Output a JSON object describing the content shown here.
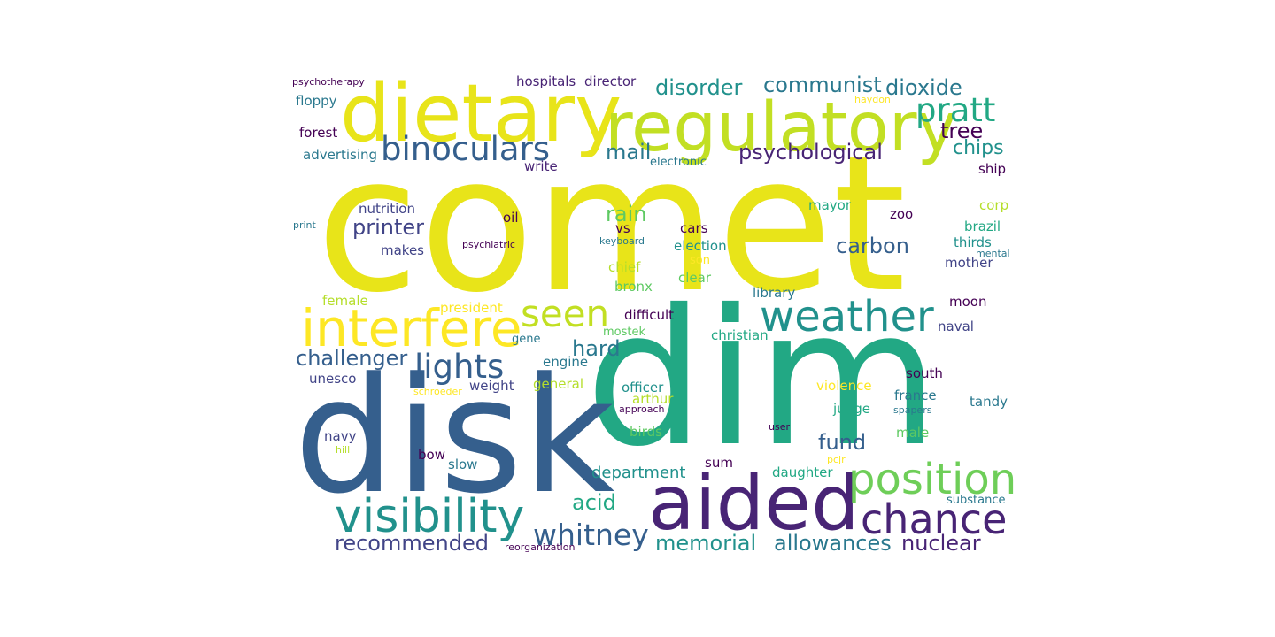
{
  "palette": {
    "yellow": "#e8e419",
    "yellow_green": "#c2df23",
    "light_green": "#6ece58",
    "green": "#22a884",
    "teal": "#2a788e",
    "blue": "#355f8d",
    "indigo": "#414487",
    "purple": "#440154",
    "dark_purple": "#482475"
  },
  "words": [
    {
      "text": "comet",
      "color": "#e8e419"
    },
    {
      "text": "dim",
      "color": "#22a884"
    },
    {
      "text": "disk",
      "color": "#355f8d"
    },
    {
      "text": "dietary",
      "color": "#e8e419"
    },
    {
      "text": "regulatory",
      "color": "#c2df23"
    },
    {
      "text": "aided",
      "color": "#482475"
    },
    {
      "text": "interfere",
      "color": "#fde725"
    },
    {
      "text": "weather",
      "color": "#21918c"
    },
    {
      "text": "visibility",
      "color": "#21918c"
    },
    {
      "text": "position",
      "color": "#6ece58"
    },
    {
      "text": "chance",
      "color": "#482475"
    },
    {
      "text": "seen",
      "color": "#c2df23"
    },
    {
      "text": "binoculars",
      "color": "#355f8d"
    },
    {
      "text": "pratt",
      "color": "#22a884"
    },
    {
      "text": "lights",
      "color": "#355f8d"
    },
    {
      "text": "whitney",
      "color": "#355f8d"
    },
    {
      "text": "communist",
      "color": "#2a788e"
    },
    {
      "text": "disorder",
      "color": "#21918c"
    },
    {
      "text": "dioxide",
      "color": "#2a788e"
    },
    {
      "text": "psychological",
      "color": "#482475"
    },
    {
      "text": "recommended",
      "color": "#414487"
    },
    {
      "text": "memorial",
      "color": "#21918c"
    },
    {
      "text": "allowances",
      "color": "#2a788e"
    },
    {
      "text": "nuclear",
      "color": "#482475"
    },
    {
      "text": "challenger",
      "color": "#355f8d"
    },
    {
      "text": "carbon",
      "color": "#355f8d"
    },
    {
      "text": "printer",
      "color": "#414487"
    },
    {
      "text": "fund",
      "color": "#355f8d"
    },
    {
      "text": "hard",
      "color": "#2a788e"
    },
    {
      "text": "acid",
      "color": "#22a884"
    },
    {
      "text": "rain",
      "color": "#5ec962"
    },
    {
      "text": "mail",
      "color": "#2a788e"
    },
    {
      "text": "tree",
      "color": "#440154"
    },
    {
      "text": "chips",
      "color": "#21918c"
    },
    {
      "text": "department",
      "color": "#21918c"
    },
    {
      "text": "hospitals",
      "color": "#482475"
    },
    {
      "text": "director",
      "color": "#482475"
    },
    {
      "text": "psychotherapy",
      "color": "#440154"
    },
    {
      "text": "floppy",
      "color": "#2a788e"
    },
    {
      "text": "forest",
      "color": "#440154"
    },
    {
      "text": "advertising",
      "color": "#2a788e"
    },
    {
      "text": "write",
      "color": "#482475"
    },
    {
      "text": "electronic",
      "color": "#2a788e"
    },
    {
      "text": "haydon",
      "color": "#fde725"
    },
    {
      "text": "ship",
      "color": "#440154"
    },
    {
      "text": "nutrition",
      "color": "#414487"
    },
    {
      "text": "oil",
      "color": "#440154"
    },
    {
      "text": "print",
      "color": "#2a788e"
    },
    {
      "text": "vs",
      "color": "#440154"
    },
    {
      "text": "cars",
      "color": "#440154"
    },
    {
      "text": "mayor",
      "color": "#22a884"
    },
    {
      "text": "zoo",
      "color": "#440154"
    },
    {
      "text": "corp",
      "color": "#b5de2b"
    },
    {
      "text": "brazil",
      "color": "#22a884"
    },
    {
      "text": "makes",
      "color": "#414487"
    },
    {
      "text": "psychiatric",
      "color": "#440154"
    },
    {
      "text": "keyboard",
      "color": "#2a788e"
    },
    {
      "text": "election",
      "color": "#21918c"
    },
    {
      "text": "thirds",
      "color": "#21918c"
    },
    {
      "text": "mental",
      "color": "#2a788e"
    },
    {
      "text": "son",
      "color": "#fde725"
    },
    {
      "text": "mother",
      "color": "#414487"
    },
    {
      "text": "chief",
      "color": "#b5de2b"
    },
    {
      "text": "clear",
      "color": "#5ec962"
    },
    {
      "text": "bronx",
      "color": "#5ec962"
    },
    {
      "text": "library",
      "color": "#2a788e"
    },
    {
      "text": "female",
      "color": "#b5de2b"
    },
    {
      "text": "president",
      "color": "#fde725"
    },
    {
      "text": "moon",
      "color": "#440154"
    },
    {
      "text": "difficult",
      "color": "#440154"
    },
    {
      "text": "gene",
      "color": "#2a788e"
    },
    {
      "text": "mostek",
      "color": "#5ec962"
    },
    {
      "text": "christian",
      "color": "#22a884"
    },
    {
      "text": "naval",
      "color": "#414487"
    },
    {
      "text": "engine",
      "color": "#2a788e"
    },
    {
      "text": "unesco",
      "color": "#414487"
    },
    {
      "text": "schroeder",
      "color": "#fde725"
    },
    {
      "text": "weight",
      "color": "#414487"
    },
    {
      "text": "general",
      "color": "#b5de2b"
    },
    {
      "text": "officer",
      "color": "#21918c"
    },
    {
      "text": "violence",
      "color": "#fde725"
    },
    {
      "text": "south",
      "color": "#440154"
    },
    {
      "text": "arthur",
      "color": "#b5de2b"
    },
    {
      "text": "france",
      "color": "#2a788e"
    },
    {
      "text": "approach",
      "color": "#440154"
    },
    {
      "text": "judge",
      "color": "#22a884"
    },
    {
      "text": "spapers",
      "color": "#2a788e"
    },
    {
      "text": "tandy",
      "color": "#2a788e"
    },
    {
      "text": "navy",
      "color": "#414487"
    },
    {
      "text": "birds",
      "color": "#5ec962"
    },
    {
      "text": "user",
      "color": "#440154"
    },
    {
      "text": "male",
      "color": "#5ec962"
    },
    {
      "text": "hill",
      "color": "#b5de2b"
    },
    {
      "text": "bow",
      "color": "#440154"
    },
    {
      "text": "pcjr",
      "color": "#fde725"
    },
    {
      "text": "slow",
      "color": "#2a788e"
    },
    {
      "text": "sum",
      "color": "#440154"
    },
    {
      "text": "daughter",
      "color": "#22a884"
    },
    {
      "text": "substance",
      "color": "#2a788e"
    },
    {
      "text": "reorganization",
      "color": "#440154"
    }
  ]
}
